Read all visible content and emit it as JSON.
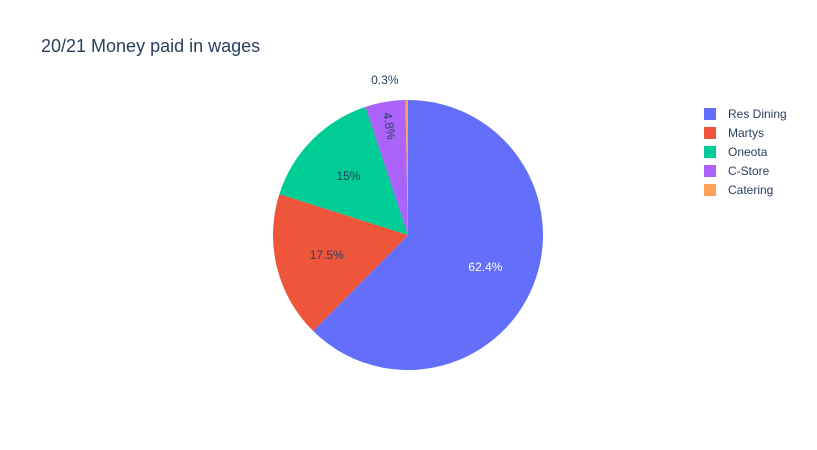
{
  "chart_data": {
    "type": "pie",
    "title": "20/21 Money paid in wages",
    "categories": [
      "Res Dining",
      "Martys",
      "Oneota",
      "C-Store",
      "Catering"
    ],
    "values": [
      62.4,
      17.5,
      15,
      4.8,
      0.3
    ],
    "labels": [
      "62.4%",
      "17.5%",
      "15%",
      "4.8%",
      "0.3%"
    ],
    "colors": [
      "#636efa",
      "#EF553B",
      "#00cc96",
      "#ab63fa",
      "#FFA15A"
    ],
    "legend_position": "top-right",
    "direction": "clockwise",
    "start": "top"
  }
}
